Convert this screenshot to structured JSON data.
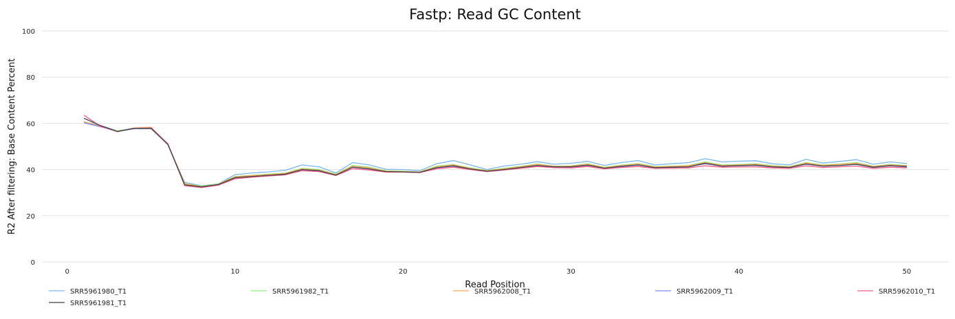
{
  "chart_data": {
    "type": "line",
    "title": "Fastp: Read GC Content",
    "xlabel": "Read Position",
    "ylabel": "R2 After filtering: Base Content Percent",
    "xlim": [
      -1.5,
      52.5
    ],
    "ylim": [
      0,
      100
    ],
    "xticks": [
      0,
      10,
      20,
      30,
      40,
      50
    ],
    "yticks": [
      0,
      20,
      40,
      60,
      80,
      100
    ],
    "grid": "horizontal",
    "legend_position": "bottom",
    "x": [
      1,
      2,
      3,
      4,
      5,
      6,
      7,
      8,
      9,
      10,
      11,
      12,
      13,
      14,
      15,
      16,
      17,
      18,
      19,
      20,
      21,
      22,
      23,
      24,
      25,
      26,
      27,
      28,
      29,
      30,
      31,
      32,
      33,
      34,
      35,
      36,
      37,
      38,
      39,
      40,
      41,
      42,
      43,
      44,
      45,
      46,
      47,
      48,
      49,
      50
    ],
    "series": [
      {
        "name": "SRR5961980_T1",
        "color": "#7cb5ec",
        "values": [
          60.6,
          59.0,
          56.7,
          58.0,
          58.0,
          50.8,
          34.5,
          33.0,
          33.8,
          37.8,
          38.5,
          39.0,
          39.7,
          42.0,
          41.2,
          38.5,
          43.0,
          42.0,
          40.1,
          40.0,
          39.5,
          42.5,
          43.9,
          42.0,
          40.0,
          41.5,
          42.3,
          43.4,
          42.3,
          42.7,
          43.5,
          41.8,
          43.0,
          43.9,
          42.0,
          42.5,
          43.0,
          44.7,
          43.3,
          43.6,
          43.8,
          42.5,
          42.0,
          44.4,
          42.8,
          43.5,
          44.3,
          42.3,
          43.3,
          42.6
        ]
      },
      {
        "name": "SRR5961982_T1",
        "color": "#90ed7d",
        "values": [
          60.5,
          58.5,
          56.8,
          57.8,
          57.8,
          51.0,
          34.0,
          32.8,
          33.8,
          37.0,
          37.5,
          38.0,
          38.5,
          40.5,
          40.0,
          38.0,
          41.8,
          41.0,
          39.5,
          39.3,
          39.0,
          41.5,
          42.2,
          40.7,
          39.6,
          40.5,
          41.4,
          42.4,
          41.5,
          41.6,
          42.5,
          41.0,
          41.9,
          42.6,
          41.3,
          41.5,
          41.8,
          43.3,
          42.0,
          42.2,
          42.5,
          41.7,
          41.3,
          43.0,
          42.0,
          42.4,
          43.0,
          41.5,
          42.2,
          41.8
        ]
      },
      {
        "name": "SRR5962008_T1",
        "color": "#f7a35c",
        "values": [
          60.7,
          58.7,
          56.3,
          58.0,
          58.3,
          51.0,
          33.9,
          32.6,
          33.6,
          36.8,
          37.4,
          37.8,
          38.3,
          40.3,
          39.7,
          37.8,
          41.5,
          40.7,
          39.3,
          39.1,
          38.9,
          41.2,
          42.0,
          40.5,
          39.5,
          40.3,
          41.2,
          42.2,
          41.4,
          41.5,
          42.3,
          40.8,
          41.7,
          42.4,
          41.1,
          41.3,
          41.6,
          43.0,
          41.8,
          42.0,
          42.3,
          41.5,
          41.1,
          42.8,
          41.8,
          42.2,
          42.7,
          41.3,
          42.0,
          41.6
        ]
      },
      {
        "name": "SRR5962009_T1",
        "color": "#8085e9",
        "values": [
          60.2,
          58.5,
          56.5,
          57.7,
          57.7,
          50.9,
          33.2,
          32.3,
          33.3,
          36.3,
          36.8,
          37.3,
          38.0,
          39.9,
          39.3,
          37.5,
          41.0,
          40.2,
          39.0,
          38.9,
          38.7,
          40.7,
          41.5,
          40.0,
          39.2,
          39.8,
          40.8,
          41.7,
          41.0,
          41.0,
          41.8,
          40.5,
          41.2,
          41.9,
          40.7,
          40.9,
          41.1,
          42.5,
          41.4,
          41.6,
          41.8,
          41.1,
          40.8,
          42.3,
          41.4,
          41.7,
          42.2,
          40.9,
          41.6,
          41.1
        ]
      },
      {
        "name": "SRR5962010_T1",
        "color": "#f15c80",
        "values": [
          63.5,
          58.6,
          56.5,
          57.9,
          58.0,
          51.2,
          33.0,
          32.2,
          33.2,
          36.0,
          36.7,
          37.2,
          37.7,
          39.5,
          39.1,
          37.4,
          40.4,
          39.8,
          38.9,
          38.9,
          38.7,
          40.3,
          41.0,
          40.0,
          39.1,
          39.8,
          40.5,
          41.3,
          40.8,
          40.7,
          41.3,
          40.3,
          40.9,
          41.3,
          40.5,
          40.6,
          40.7,
          41.6,
          41.0,
          41.1,
          41.2,
          40.7,
          40.5,
          41.6,
          40.9,
          41.2,
          41.5,
          40.5,
          41.0,
          40.7
        ]
      },
      {
        "name": "SRR5961981_T1",
        "color": "#434348",
        "values": [
          62.2,
          59.0,
          56.5,
          57.8,
          57.8,
          50.8,
          33.4,
          32.5,
          33.5,
          36.5,
          37.0,
          37.5,
          38.0,
          40.0,
          39.5,
          37.6,
          41.0,
          40.3,
          39.1,
          39.0,
          38.8,
          40.8,
          41.6,
          40.3,
          39.3,
          40.0,
          40.9,
          41.8,
          41.2,
          41.2,
          41.9,
          40.6,
          41.4,
          42.0,
          40.8,
          41.0,
          41.2,
          42.7,
          41.5,
          41.7,
          41.9,
          41.2,
          40.9,
          42.4,
          41.5,
          41.8,
          42.3,
          41.0,
          41.7,
          41.3
        ]
      }
    ]
  }
}
